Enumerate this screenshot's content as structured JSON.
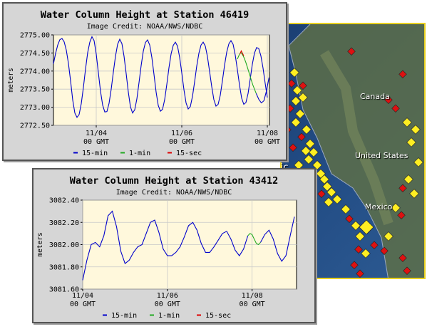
{
  "map": {
    "labels": [
      "Canada",
      "United States",
      "Mexico",
      "fic"
    ],
    "colors": {
      "ocean": "#214a82",
      "land": "#6b7a52",
      "station_active": "#ffee22",
      "station_alert": "#dd1111"
    }
  },
  "chart_data": [
    {
      "type": "line",
      "title": "Water Column Height at Station 46419",
      "subtitle": "Image Credit: NOAA/NWS/NDBC",
      "xlabel": "",
      "ylabel": "meters",
      "ylim": [
        2772.5,
        2775.0
      ],
      "yticks": [
        2772.5,
        2773.0,
        2773.5,
        2774.0,
        2774.5,
        2775.0
      ],
      "ytick_labels": [
        "2772.50",
        "2773.00",
        "2773.50",
        "2774.00",
        "2774.50",
        "2775.00"
      ],
      "xlim": [
        0,
        5.05
      ],
      "xticks": [
        1,
        3,
        5
      ],
      "xtick_labels": [
        [
          "11/04",
          "00 GMT"
        ],
        [
          "11/06",
          "00 GMT"
        ],
        [
          "11/08",
          "00 GMT"
        ]
      ],
      "grid": true,
      "legend_placement": "bottom",
      "legend": [
        "15-min",
        "1-min",
        "15-sec"
      ],
      "colors": {
        "15-min": "#0000cc",
        "1-min": "#22aa22",
        "15-sec": "#dd0000",
        "plot_bg": "#fff8dc"
      },
      "series": [
        {
          "name": "15-min",
          "x": [
            0,
            0.05,
            0.1,
            0.15,
            0.2,
            0.25,
            0.3,
            0.35,
            0.4,
            0.45,
            0.5,
            0.55,
            0.6,
            0.65,
            0.7,
            0.75,
            0.8,
            0.85,
            0.9,
            0.95,
            1.0,
            1.05,
            1.1,
            1.15,
            1.2,
            1.25,
            1.3,
            1.35,
            1.4,
            1.45,
            1.5,
            1.55,
            1.6,
            1.65,
            1.7,
            1.75,
            1.8,
            1.85,
            1.9,
            1.95,
            2.0,
            2.05,
            2.1,
            2.15,
            2.2,
            2.25,
            2.3,
            2.35,
            2.4,
            2.45,
            2.5,
            2.55,
            2.6,
            2.65,
            2.7,
            2.75,
            2.8,
            2.85,
            2.9,
            2.95,
            3.0,
            3.05,
            3.1,
            3.15,
            3.2,
            3.25,
            3.3,
            3.35,
            3.4,
            3.45,
            3.5,
            3.55,
            3.6,
            3.65,
            3.7,
            3.75,
            3.8,
            3.85,
            3.9,
            3.95,
            4.0,
            4.05,
            4.1,
            4.15,
            4.2,
            4.25,
            4.3,
            4.35,
            4.4,
            4.45,
            4.5,
            4.55,
            4.6,
            4.65,
            4.7,
            4.75,
            4.8,
            4.85,
            4.9,
            4.95,
            5.0
          ],
          "y": [
            2774.2,
            2774.49,
            2774.72,
            2774.87,
            2774.9,
            2774.81,
            2774.58,
            2774.21,
            2773.73,
            2773.2,
            2772.84,
            2772.72,
            2772.8,
            2773.1,
            2773.55,
            2774.06,
            2774.51,
            2774.8,
            2774.95,
            2774.84,
            2774.47,
            2773.95,
            2773.44,
            2773.06,
            2772.87,
            2772.88,
            2773.11,
            2773.5,
            2773.97,
            2774.41,
            2774.74,
            2774.88,
            2774.76,
            2774.41,
            2773.93,
            2773.42,
            2773.01,
            2772.84,
            2772.93,
            2773.23,
            2773.68,
            2774.15,
            2774.55,
            2774.79,
            2774.86,
            2774.72,
            2774.38,
            2773.91,
            2773.42,
            2773.05,
            2772.89,
            2772.94,
            2773.21,
            2773.63,
            2774.09,
            2774.47,
            2774.71,
            2774.8,
            2774.69,
            2774.38,
            2773.95,
            2773.49,
            2773.12,
            2772.95,
            2773.02,
            2773.3,
            2773.7,
            2774.14,
            2774.49,
            2774.72,
            2774.8,
            2774.69,
            2774.4,
            2773.99,
            2773.57,
            2773.21,
            2773.03,
            2773.08,
            2773.33,
            2773.73,
            2774.16,
            2774.52,
            2774.75,
            2774.84,
            2774.74,
            2774.44,
            2774.04,
            2773.61,
            2773.25,
            2773.08,
            2773.13,
            2773.38,
            2773.78,
            2774.19,
            2774.5,
            2774.65,
            2774.62,
            2774.42,
            2774.08,
            2773.66,
            2773.27
          ]
        },
        {
          "name": "1-min",
          "x": [
            4.3,
            4.34,
            4.38,
            4.42,
            4.46,
            4.5,
            4.54,
            4.58,
            4.62,
            4.66,
            4.7,
            4.74
          ],
          "y": [
            2774.33,
            2774.44,
            2774.52,
            2774.45,
            2774.36,
            2774.23,
            2774.08,
            2773.93,
            2773.77,
            2773.62,
            2773.5,
            2773.38
          ]
        },
        {
          "name": "15-sec",
          "x": [
            4.36,
            4.39,
            4.42,
            4.45
          ],
          "y": [
            2774.47,
            2774.56,
            2774.49,
            2774.42
          ]
        },
        {
          "name": "15-min",
          "x": [
            4.74,
            4.8,
            4.86,
            4.92,
            4.98,
            5.04
          ],
          "y": [
            2773.38,
            2773.22,
            2773.12,
            2773.18,
            2773.45,
            2773.82
          ]
        }
      ]
    },
    {
      "type": "line",
      "title": "Water Column Height at Station 43412",
      "subtitle": "Image Credit: NOAA/NWS/NDBC",
      "xlabel": "",
      "ylabel": "meters",
      "ylim": [
        3081.6,
        3082.4
      ],
      "yticks": [
        3081.6,
        3081.8,
        3082.0,
        3082.2,
        3082.4
      ],
      "ytick_labels": [
        "3081.60",
        "3081.80",
        "3082.00",
        "3082.20",
        "3082.40"
      ],
      "xlim": [
        0,
        5.05
      ],
      "xticks": [
        0,
        2,
        4
      ],
      "xtick_labels": [
        [
          "11/04",
          "00 GMT"
        ],
        [
          "11/06",
          "00 GMT"
        ],
        [
          "11/08",
          "00 GMT"
        ]
      ],
      "grid": true,
      "legend_placement": "bottom",
      "legend": [
        "15-min",
        "1-min",
        "15-sec"
      ],
      "colors": {
        "15-min": "#0000cc",
        "1-min": "#22aa22",
        "15-sec": "#dd0000",
        "plot_bg": "#fff8dc"
      },
      "series": [
        {
          "name": "15-min",
          "x": [
            0,
            0.1,
            0.2,
            0.3,
            0.4,
            0.5,
            0.6,
            0.7,
            0.8,
            0.9,
            1.0,
            1.1,
            1.2,
            1.3,
            1.4,
            1.5,
            1.6,
            1.7,
            1.8,
            1.9,
            2.0,
            2.1,
            2.2,
            2.3,
            2.4,
            2.5,
            2.6,
            2.7,
            2.8,
            2.9,
            3.0,
            3.1,
            3.2,
            3.3,
            3.4,
            3.5,
            3.6,
            3.7,
            3.8,
            3.9
          ],
          "y": [
            3081.68,
            3081.86,
            3082.0,
            3082.02,
            3081.98,
            3082.08,
            3082.26,
            3082.3,
            3082.16,
            3081.94,
            3081.83,
            3081.86,
            3081.93,
            3081.98,
            3082.0,
            3082.1,
            3082.2,
            3082.22,
            3082.11,
            3081.96,
            3081.9,
            3081.9,
            3081.93,
            3081.98,
            3082.07,
            3082.17,
            3082.2,
            3082.13,
            3082.01,
            3081.93,
            3081.93,
            3081.98,
            3082.04,
            3082.1,
            3082.12,
            3082.05,
            3081.95,
            3081.9,
            3081.96,
            3082.08
          ]
        },
        {
          "name": "1-min",
          "x": [
            3.9,
            3.95,
            4.0,
            4.05,
            4.1,
            4.15,
            4.2
          ],
          "y": [
            3082.08,
            3082.1,
            3082.09,
            3082.05,
            3082.01,
            3082.0,
            3082.02
          ]
        },
        {
          "name": "15-min",
          "x": [
            4.2,
            4.3,
            4.4,
            4.5,
            4.6,
            4.7,
            4.8,
            4.9,
            5.0
          ],
          "y": [
            3082.02,
            3082.09,
            3082.13,
            3082.05,
            3081.92,
            3081.85,
            3081.9,
            3082.08,
            3082.25
          ]
        }
      ]
    }
  ]
}
